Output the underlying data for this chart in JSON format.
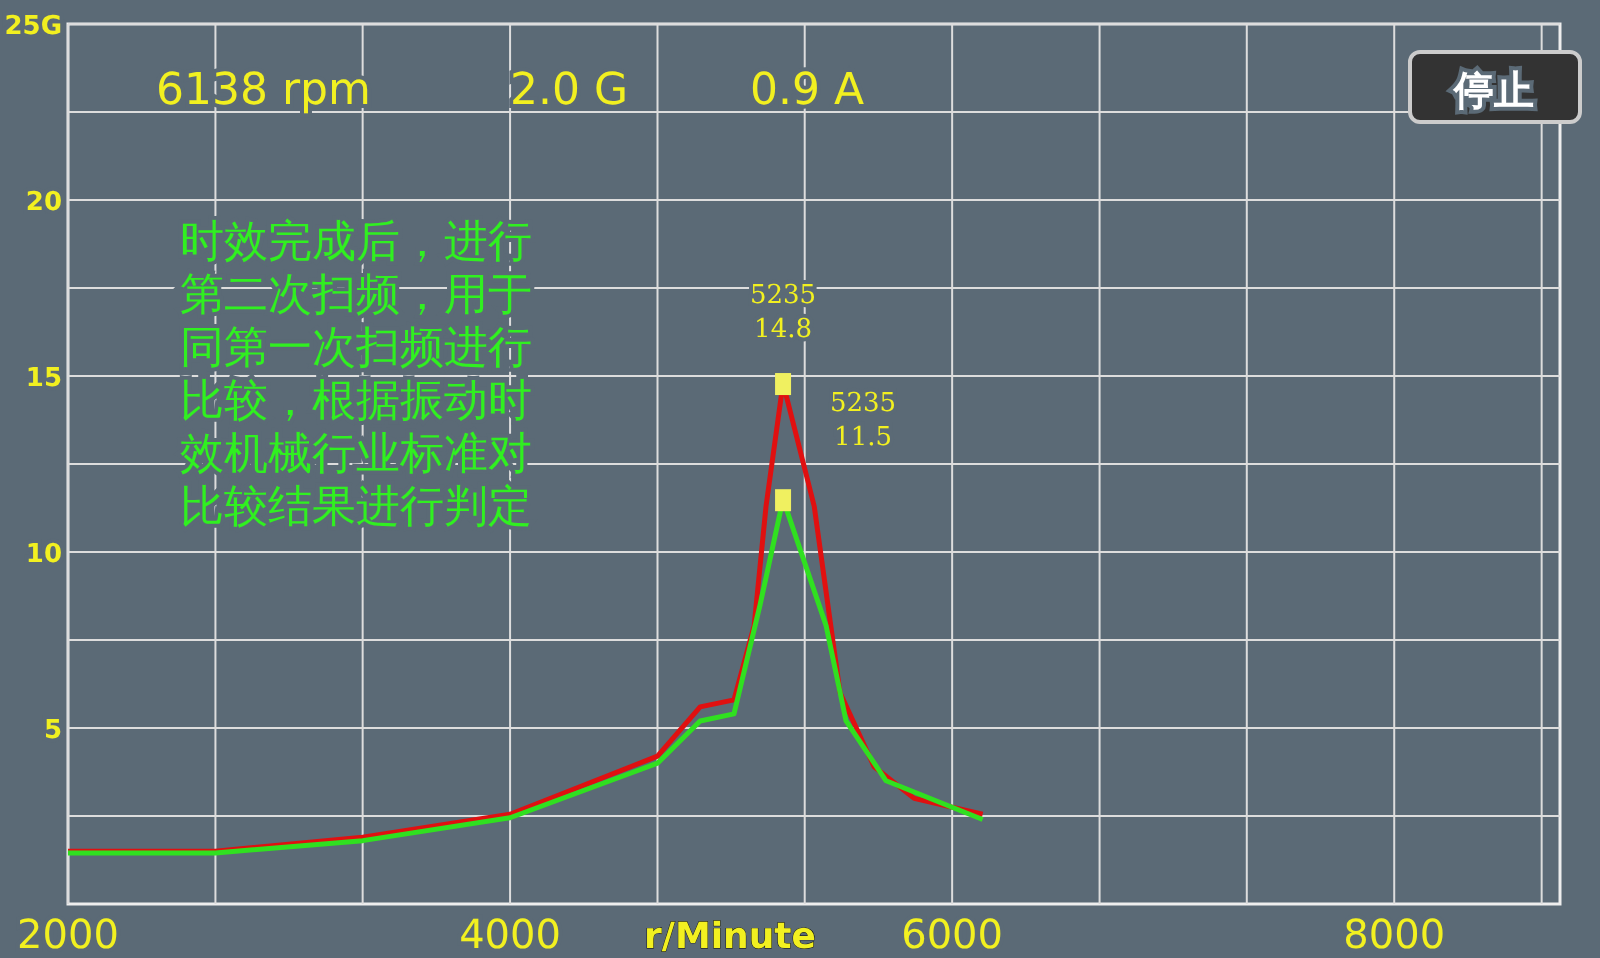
{
  "chart_data": {
    "type": "line",
    "xlabel": "r/Minute",
    "grid": true,
    "marker": "none",
    "line_style": "solid",
    "xlim": [
      2000,
      8750
    ],
    "ylim": [
      0,
      25
    ],
    "xticks": [
      2000,
      {
        "value": 2667,
        "label": null
      },
      {
        "value": 3333,
        "label": null
      },
      4000,
      {
        "value": 4667,
        "label": null
      },
      {
        "value": 5333,
        "label": null
      },
      6000,
      {
        "value": 6667,
        "label": null
      },
      {
        "value": 7333,
        "label": null
      },
      8000,
      {
        "value": 8667,
        "label": null
      }
    ],
    "yticks": [
      {
        "value": 2.5,
        "label": null
      },
      5,
      {
        "value": 7.5,
        "label": null
      },
      10,
      {
        "value": 12.5,
        "label": null
      },
      15,
      {
        "value": 17.5,
        "label": null
      },
      20,
      {
        "value": 22.5,
        "label": null
      },
      {
        "value": 25,
        "label": "25G"
      }
    ],
    "series": [
      {
        "color": "#e01010",
        "x": [
          2000,
          2667,
          3333,
          4000,
          4667,
          4860,
          5013,
          5104,
          5158,
          5235,
          5376,
          5493,
          5647,
          5828,
          6138
        ],
        "values": [
          1.5,
          1.5,
          1.9,
          2.55,
          4.2,
          5.6,
          5.8,
          7.9,
          11.3,
          14.8,
          11.3,
          6.0,
          3.9,
          3.0,
          2.55
        ]
      },
      {
        "color": "#30e020",
        "x": [
          2000,
          2667,
          3333,
          4000,
          4667,
          4860,
          5013,
          5131,
          5235,
          5430,
          5520,
          5701,
          6138
        ],
        "values": [
          1.45,
          1.45,
          1.8,
          2.45,
          4.0,
          5.2,
          5.4,
          8.5,
          11.5,
          7.9,
          5.2,
          3.5,
          2.4
        ]
      }
    ],
    "annotations": [
      "6138 rpm",
      "2.0 G",
      "0.9 A",
      "停止",
      "时效完成后，进行第二次扫频，用于同第一次扫频进行比较，根据振动时效机械行业标准对比较结果进行判定",
      {
        "text": "5235 14.8",
        "x": 5235,
        "y": 14.8
      },
      {
        "text": "5235 11.5",
        "x": 5235,
        "y": 11.5
      }
    ]
  }
}
